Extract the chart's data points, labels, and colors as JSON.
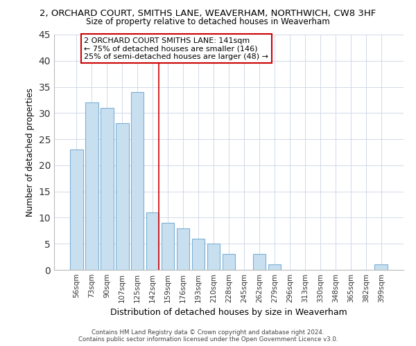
{
  "title_line1": "2, ORCHARD COURT, SMITHS LANE, WEAVERHAM, NORTHWICH, CW8 3HF",
  "title_line2": "Size of property relative to detached houses in Weaverham",
  "xlabel": "Distribution of detached houses by size in Weaverham",
  "ylabel": "Number of detached properties",
  "bar_labels": [
    "56sqm",
    "73sqm",
    "90sqm",
    "107sqm",
    "125sqm",
    "142sqm",
    "159sqm",
    "176sqm",
    "193sqm",
    "210sqm",
    "228sqm",
    "245sqm",
    "262sqm",
    "279sqm",
    "296sqm",
    "313sqm",
    "330sqm",
    "348sqm",
    "365sqm",
    "382sqm",
    "399sqm"
  ],
  "bar_values": [
    23,
    32,
    31,
    28,
    34,
    11,
    9,
    8,
    6,
    5,
    3,
    0,
    3,
    1,
    0,
    0,
    0,
    0,
    0,
    0,
    1
  ],
  "bar_color": "#c8dff0",
  "bar_edge_color": "#7ab0d4",
  "highlight_index": 5,
  "highlight_line_color": "#cc0000",
  "annotation_text_line1": "2 ORCHARD COURT SMITHS LANE: 141sqm",
  "annotation_text_line2": "← 75% of detached houses are smaller (146)",
  "annotation_text_line3": "25% of semi-detached houses are larger (48) →",
  "annotation_box_color": "#ffffff",
  "annotation_box_edge": "#cc0000",
  "ylim": [
    0,
    45
  ],
  "yticks": [
    0,
    5,
    10,
    15,
    20,
    25,
    30,
    35,
    40,
    45
  ],
  "footer_line1": "Contains HM Land Registry data © Crown copyright and database right 2024.",
  "footer_line2": "Contains public sector information licensed under the Open Government Licence v3.0.",
  "bg_color": "#ffffff",
  "grid_color": "#d0d8e8"
}
